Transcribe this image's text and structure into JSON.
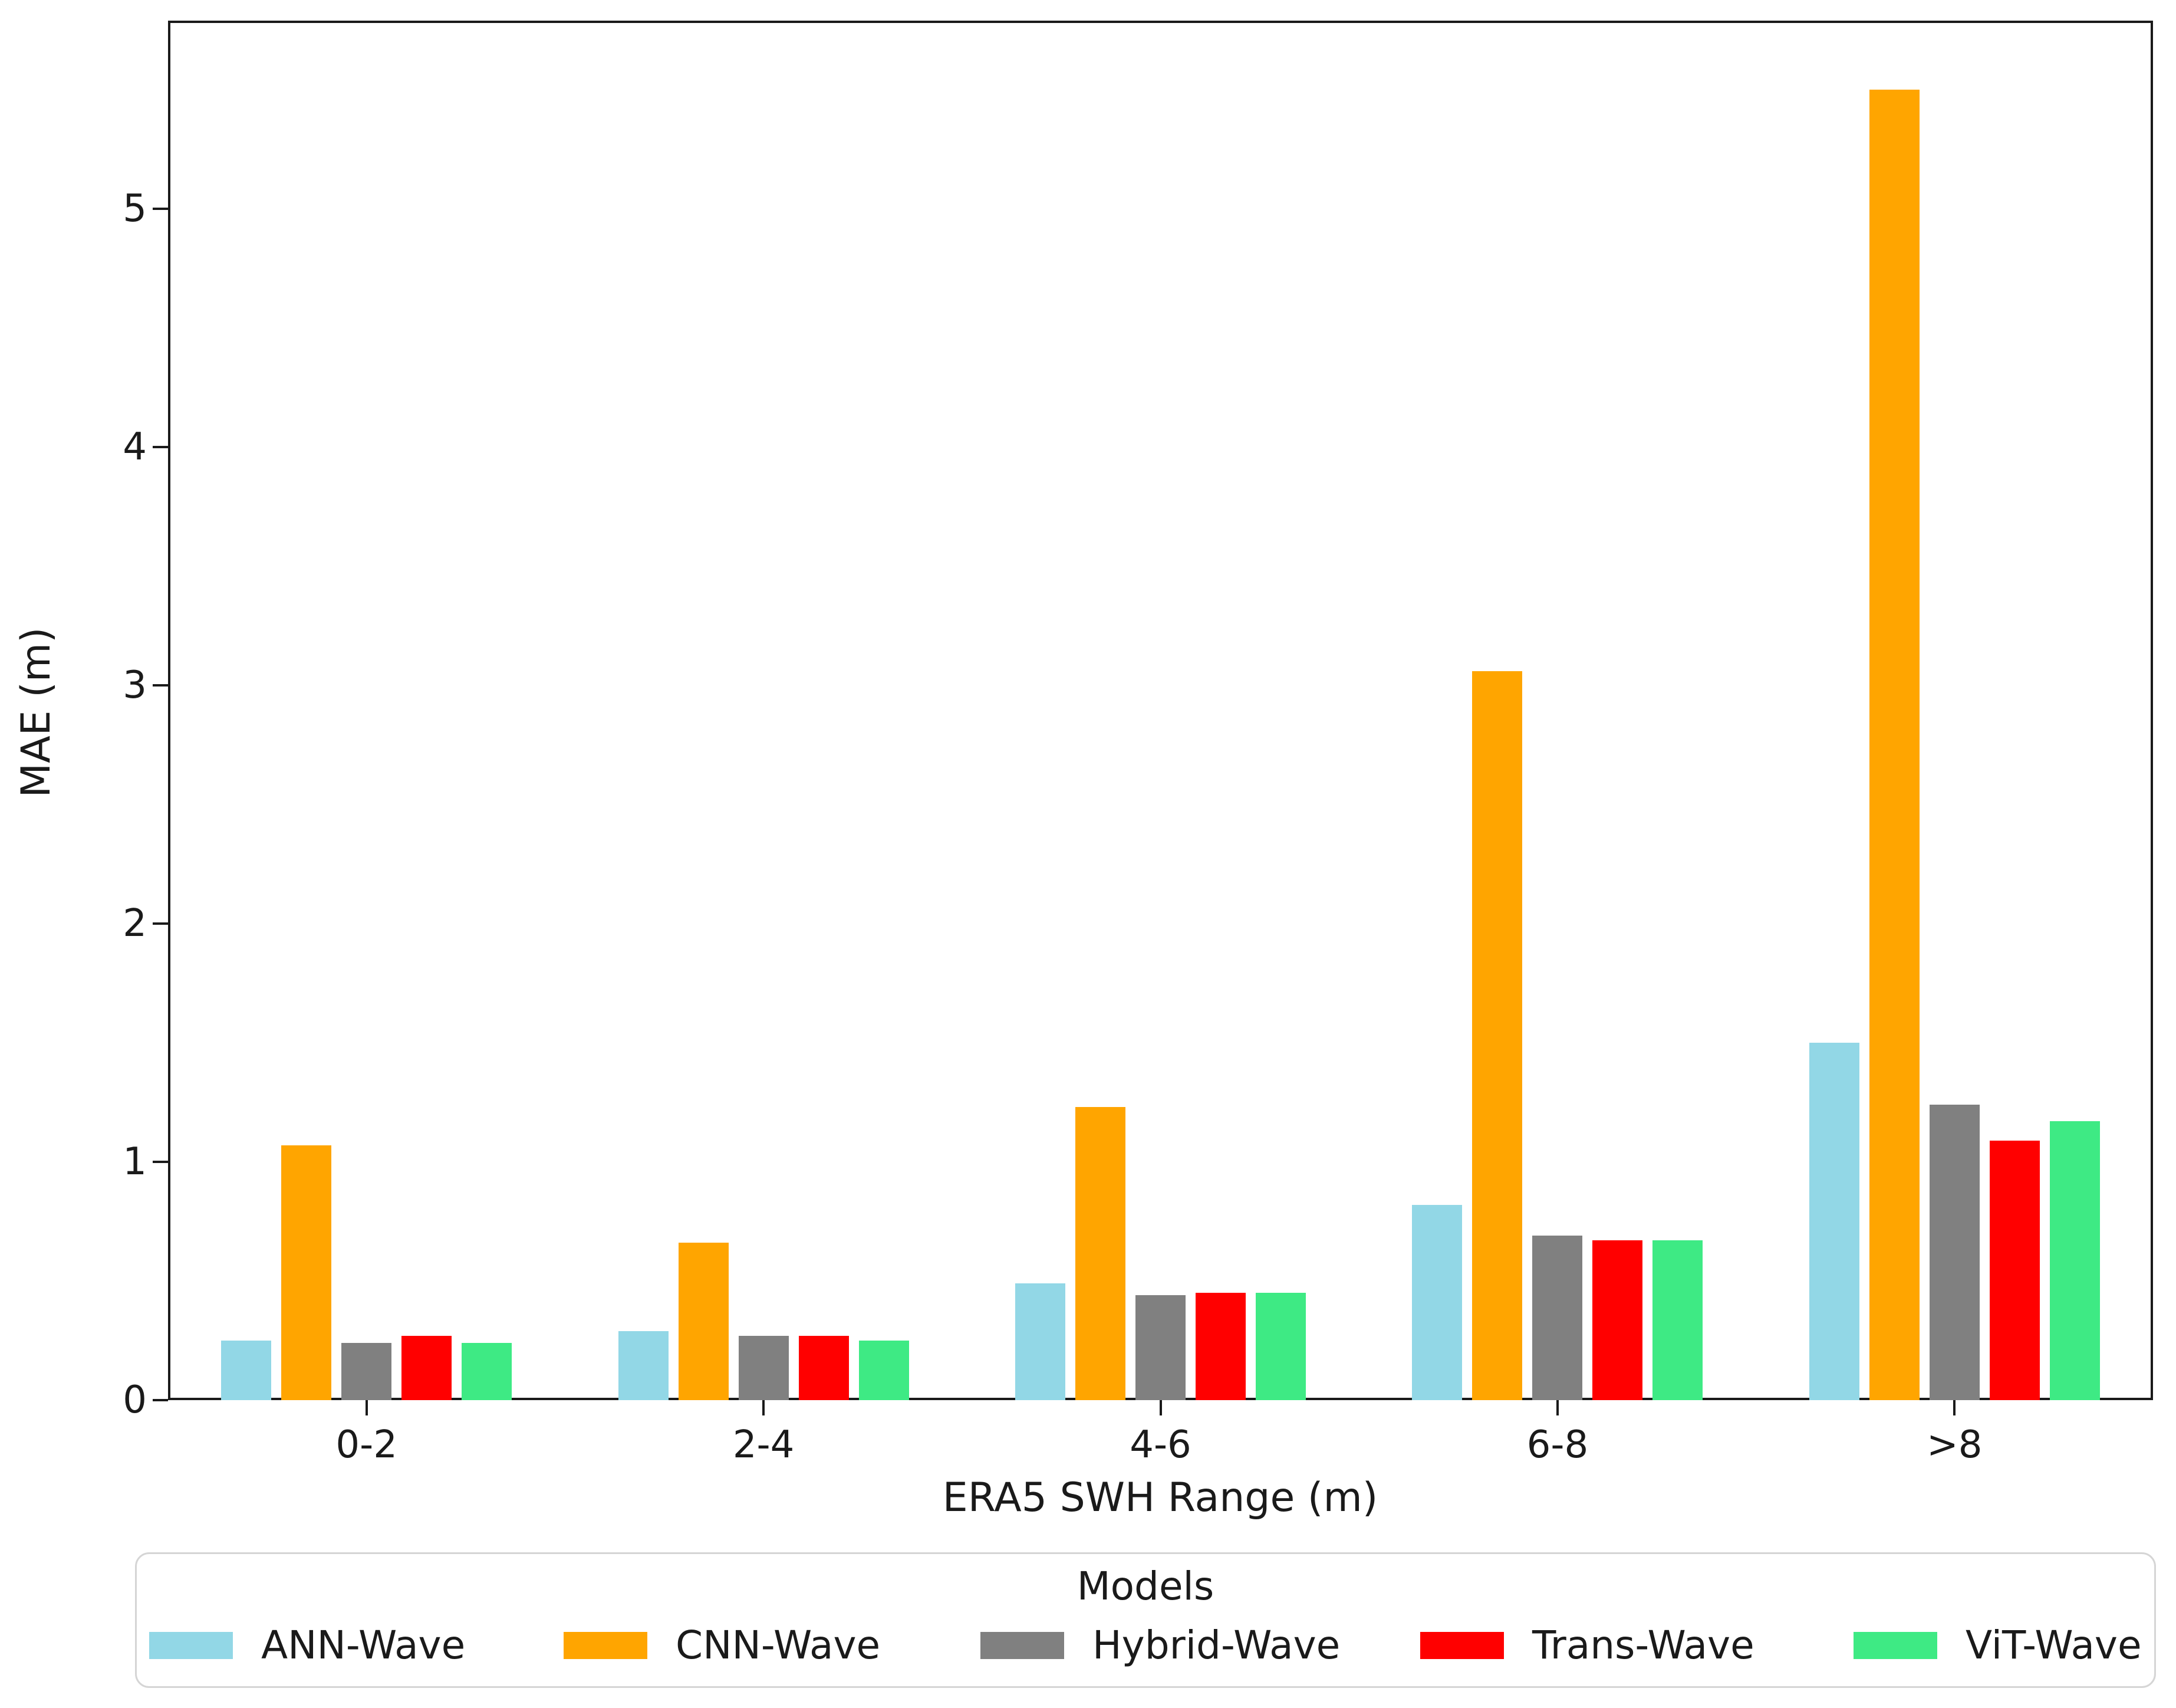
{
  "chart_data": {
    "type": "bar",
    "title": "",
    "xlabel": "ERA5 SWH Range (m)",
    "ylabel": "MAE (m)",
    "categories": [
      "0-2",
      "2-4",
      "4-6",
      "6-8",
      ">8"
    ],
    "series": [
      {
        "name": "ANN-Wave",
        "color": "#92d7e6",
        "values": [
          0.25,
          0.29,
          0.49,
          0.82,
          1.5
        ]
      },
      {
        "name": "CNN-Wave",
        "color": "#ffa500",
        "values": [
          1.07,
          0.66,
          1.23,
          3.06,
          5.5
        ]
      },
      {
        "name": "Hybrid-Wave",
        "color": "#808080",
        "values": [
          0.24,
          0.27,
          0.44,
          0.69,
          1.24
        ]
      },
      {
        "name": "Trans-Wave",
        "color": "#ff0000",
        "values": [
          0.27,
          0.27,
          0.45,
          0.67,
          1.09
        ]
      },
      {
        "name": "ViT-Wave",
        "color": "#3eea84",
        "values": [
          0.24,
          0.25,
          0.45,
          0.67,
          1.17
        ]
      }
    ],
    "ylim": [
      0,
      5.79
    ],
    "yticks": [
      0,
      1,
      2,
      3,
      4,
      5
    ],
    "grid": false,
    "legend": {
      "title": "Models",
      "position": "bottom"
    },
    "colors": {
      "axis": "#1a1a1a",
      "legend_border": "#d5d5d5",
      "background": "#ffffff"
    }
  }
}
